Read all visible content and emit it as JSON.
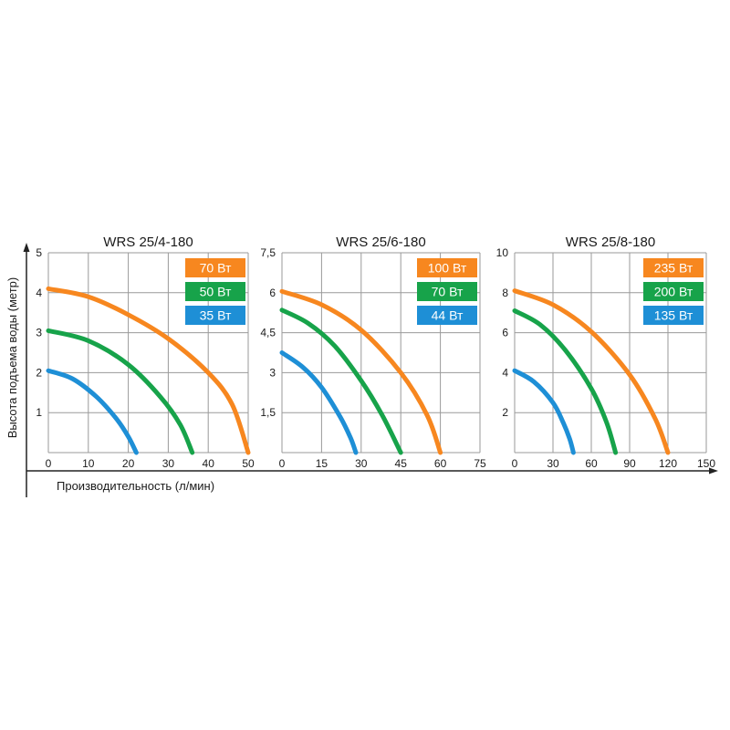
{
  "figure": {
    "ylabel": "Высота подъема воды (метр)",
    "xlabel": "Производительность (л/мин)"
  },
  "chart_data": [
    {
      "type": "line",
      "title": "WRS 25/4-180",
      "xlim": [
        0,
        50
      ],
      "ylim": [
        0,
        5
      ],
      "x_ticks": [
        "0",
        "10",
        "20",
        "30",
        "40",
        "50"
      ],
      "y_ticks": [
        "1",
        "2",
        "3",
        "4",
        "5"
      ],
      "x_tick_values": [
        0,
        10,
        20,
        30,
        40,
        50
      ],
      "y_tick_values": [
        1,
        2,
        3,
        4,
        5
      ],
      "legend_position": "top-right",
      "series": [
        {
          "name": "70 Вт",
          "color": "#f7871f",
          "x": [
            0,
            10,
            20,
            30,
            40,
            46,
            50
          ],
          "y": [
            4.1,
            3.9,
            3.45,
            2.85,
            2.0,
            1.2,
            0
          ]
        },
        {
          "name": "50 Вт",
          "color": "#17a34a",
          "x": [
            0,
            10,
            20,
            28,
            33,
            36
          ],
          "y": [
            3.05,
            2.8,
            2.2,
            1.4,
            0.7,
            0
          ]
        },
        {
          "name": "35 Вт",
          "color": "#1e8fd6",
          "x": [
            0,
            6,
            12,
            17,
            20,
            22
          ],
          "y": [
            2.05,
            1.85,
            1.4,
            0.85,
            0.4,
            0
          ]
        }
      ]
    },
    {
      "type": "line",
      "title": "WRS 25/6-180",
      "xlim": [
        0,
        75
      ],
      "ylim": [
        0,
        7.5
      ],
      "x_ticks": [
        "0",
        "15",
        "30",
        "45",
        "60",
        "75"
      ],
      "y_ticks": [
        "1,5",
        "3",
        "4,5",
        "6",
        "7,5"
      ],
      "x_tick_values": [
        0,
        15,
        30,
        45,
        60,
        75
      ],
      "y_tick_values": [
        1.5,
        3,
        4.5,
        6,
        7.5
      ],
      "legend_position": "top-right",
      "series": [
        {
          "name": "100 Вт",
          "color": "#f7871f",
          "x": [
            0,
            15,
            30,
            45,
            55,
            60
          ],
          "y": [
            6.05,
            5.55,
            4.6,
            3.0,
            1.4,
            0
          ]
        },
        {
          "name": "70 Вт",
          "color": "#17a34a",
          "x": [
            0,
            10,
            20,
            30,
            38,
            45
          ],
          "y": [
            5.35,
            4.85,
            4.0,
            2.7,
            1.4,
            0
          ]
        },
        {
          "name": "44 Вт",
          "color": "#1e8fd6",
          "x": [
            0,
            8,
            15,
            22,
            26,
            28
          ],
          "y": [
            3.75,
            3.2,
            2.45,
            1.35,
            0.55,
            0
          ]
        }
      ]
    },
    {
      "type": "line",
      "title": "WRS 25/8-180",
      "xlim": [
        0,
        150
      ],
      "ylim": [
        0,
        10
      ],
      "x_ticks": [
        "0",
        "30",
        "60",
        "90",
        "120",
        "150"
      ],
      "y_ticks": [
        "2",
        "4",
        "6",
        "8",
        "10"
      ],
      "x_tick_values": [
        0,
        30,
        60,
        90,
        120,
        150
      ],
      "y_tick_values": [
        2,
        4,
        6,
        8,
        10
      ],
      "legend_position": "top-right",
      "series": [
        {
          "name": "235 Вт",
          "color": "#f7871f",
          "x": [
            0,
            30,
            60,
            90,
            110,
            120
          ],
          "y": [
            8.1,
            7.4,
            6.05,
            3.9,
            1.7,
            0
          ]
        },
        {
          "name": "200 Вт",
          "color": "#17a34a",
          "x": [
            0,
            20,
            40,
            60,
            72,
            79
          ],
          "y": [
            7.1,
            6.4,
            5.1,
            3.2,
            1.5,
            0
          ]
        },
        {
          "name": "135 Вт",
          "color": "#1e8fd6",
          "x": [
            0,
            15,
            30,
            38,
            43,
            46
          ],
          "y": [
            4.1,
            3.55,
            2.5,
            1.5,
            0.7,
            0
          ]
        }
      ]
    }
  ]
}
